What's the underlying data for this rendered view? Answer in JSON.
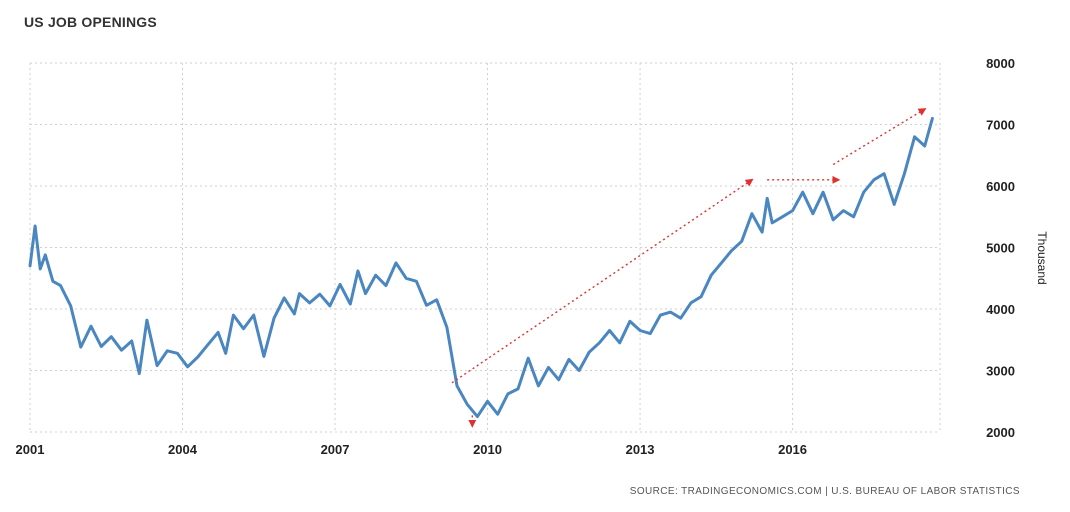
{
  "chart_data": {
    "type": "line",
    "title": "US JOB OPENINGS",
    "ylabel": "Thousand",
    "xlabel": "",
    "source": "SOURCE: TRADINGECONOMICS.COM | U.S. BUREAU OF LABOR STATISTICS",
    "xlim": [
      2001,
      2018.9
    ],
    "ylim": [
      2000,
      8000
    ],
    "x_ticks": [
      2001,
      2004,
      2007,
      2010,
      2013,
      2016
    ],
    "y_ticks": [
      2000,
      3000,
      4000,
      5000,
      6000,
      7000,
      8000
    ],
    "grid": true,
    "line_color": "#4a86c0",
    "annotation_color": "#e03030",
    "series": [
      {
        "x": [
          2001.0,
          2001.1,
          2001.2,
          2001.3,
          2001.45,
          2001.6,
          2001.8,
          2002.0,
          2002.2,
          2002.4,
          2002.6,
          2002.8,
          2003.0,
          2003.15,
          2003.3,
          2003.5,
          2003.7,
          2003.9,
          2004.1,
          2004.3,
          2004.5,
          2004.7,
          2004.85,
          2005.0,
          2005.2,
          2005.4,
          2005.6,
          2005.8,
          2006.0,
          2006.2,
          2006.3,
          2006.5,
          2006.7,
          2006.9,
          2007.1,
          2007.3,
          2007.45,
          2007.6,
          2007.8,
          2008.0,
          2008.2,
          2008.4,
          2008.6,
          2008.8,
          2009.0,
          2009.2,
          2009.4,
          2009.6,
          2009.8,
          2010.0,
          2010.2,
          2010.4,
          2010.6,
          2010.8,
          2011.0,
          2011.2,
          2011.4,
          2011.6,
          2011.8,
          2012.0,
          2012.2,
          2012.4,
          2012.6,
          2012.8,
          2013.0,
          2013.2,
          2013.4,
          2013.6,
          2013.8,
          2014.0,
          2014.2,
          2014.4,
          2014.6,
          2014.8,
          2015.0,
          2015.2,
          2015.4,
          2015.5,
          2015.6,
          2015.8,
          2016.0,
          2016.2,
          2016.4,
          2016.6,
          2016.8,
          2017.0,
          2017.2,
          2017.4,
          2017.6,
          2017.8,
          2018.0,
          2018.2,
          2018.4,
          2018.6,
          2018.75
        ],
        "values": [
          4700,
          5350,
          4650,
          4880,
          4450,
          4380,
          4050,
          3380,
          3720,
          3390,
          3550,
          3330,
          3480,
          2950,
          3820,
          3080,
          3320,
          3280,
          3060,
          3220,
          3420,
          3620,
          3280,
          3900,
          3680,
          3900,
          3230,
          3850,
          4180,
          3920,
          4250,
          4100,
          4240,
          4050,
          4400,
          4080,
          4620,
          4250,
          4550,
          4380,
          4750,
          4500,
          4450,
          4060,
          4150,
          3700,
          2750,
          2450,
          2250,
          2500,
          2290,
          2620,
          2700,
          3200,
          2750,
          3050,
          2850,
          3180,
          3000,
          3300,
          3450,
          3650,
          3450,
          3800,
          3650,
          3600,
          3900,
          3950,
          3850,
          4100,
          4200,
          4550,
          4750,
          4950,
          5100,
          5550,
          5250,
          5800,
          5400,
          5500,
          5600,
          5900,
          5550,
          5900,
          5450,
          5600,
          5500,
          5900,
          6100,
          6200,
          5700,
          6200,
          6800,
          6650,
          7100
        ]
      }
    ],
    "annotations": [
      {
        "type": "arrow",
        "from": [
          2009.3,
          2800
        ],
        "to": [
          2015.2,
          6100
        ]
      },
      {
        "type": "arrow",
        "from": [
          2015.5,
          6100
        ],
        "to": [
          2016.9,
          6100
        ]
      },
      {
        "type": "arrow",
        "from": [
          2016.8,
          6350
        ],
        "to": [
          2018.6,
          7250
        ]
      },
      {
        "type": "arrow",
        "from": [
          2009.7,
          2270
        ],
        "to": [
          2009.7,
          2100
        ]
      }
    ]
  }
}
